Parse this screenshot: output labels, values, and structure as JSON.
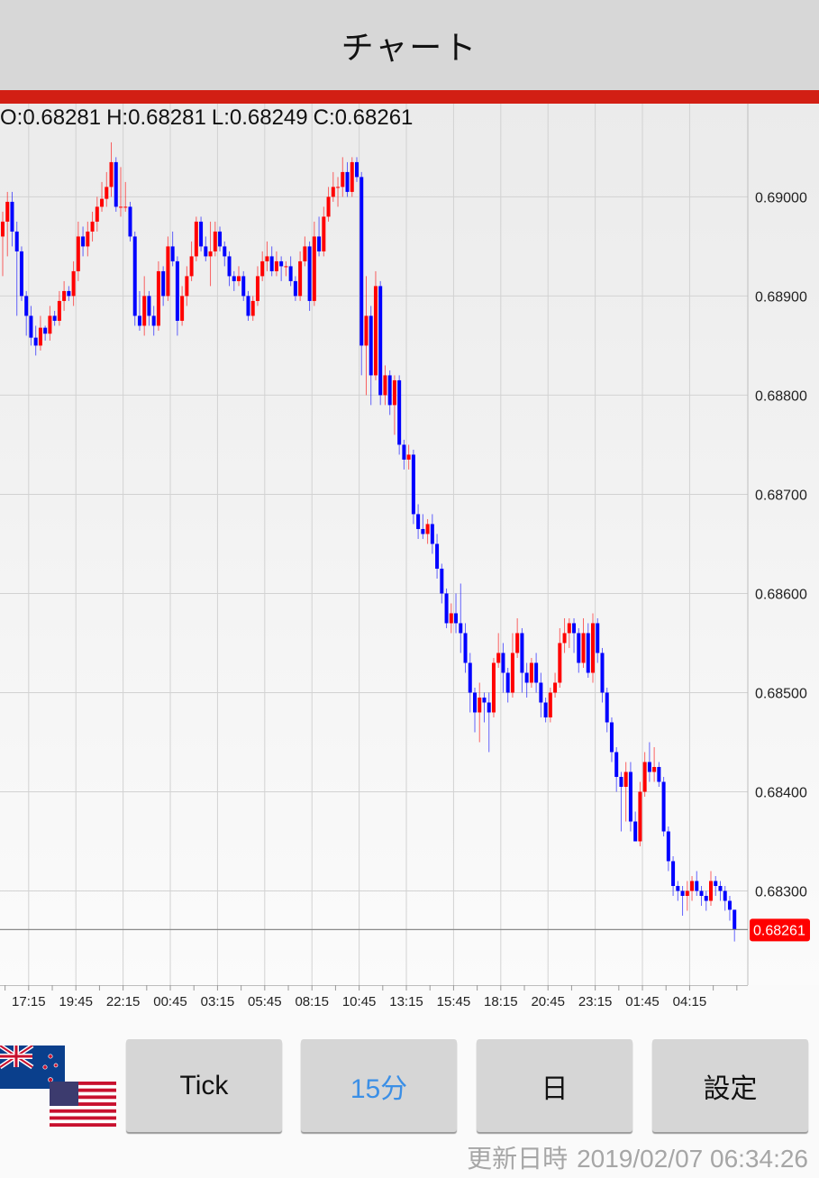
{
  "header": {
    "title": "チャート"
  },
  "ohlc": {
    "open": "O:0.68281",
    "high": "H:0.68281",
    "low": "L:0.68249",
    "close": "C:0.68261"
  },
  "colors": {
    "up": "#ff0000",
    "down": "#0000ff",
    "accent_bar": "#d21f14",
    "active_button": "#3b8fe6",
    "current_price_label": "#ff0000"
  },
  "currency_pair": {
    "base_flag": "new-zealand-flag",
    "quote_flag": "united-states-flag"
  },
  "buttons": [
    {
      "label": "Tick",
      "active": false
    },
    {
      "label": "15分",
      "active": true
    },
    {
      "label": "日",
      "active": false
    },
    {
      "label": "設定",
      "active": false
    }
  ],
  "updated": {
    "label": "更新日時",
    "value": "2019/02/07 06:34:26"
  },
  "chart_data": {
    "type": "candlestick",
    "interval": "15分",
    "ylim": [
      0.68205,
      0.69094
    ],
    "y_ticks": [
      "0.69000",
      "0.68900",
      "0.68800",
      "0.68700",
      "0.68600",
      "0.68500",
      "0.68400",
      "0.68300"
    ],
    "x_tick_labels": [
      "17:15",
      "19:45",
      "22:15",
      "00:45",
      "03:15",
      "05:45",
      "08:15",
      "10:45",
      "13:15",
      "15:45",
      "18:15",
      "20:45",
      "23:15",
      "01:45",
      "04:15"
    ],
    "current_price": "0.68261",
    "grid": true,
    "first_open": 0.6896,
    "close": [
      0.68975,
      0.68995,
      0.68965,
      0.68945,
      0.689,
      0.6888,
      0.68858,
      0.6885,
      0.68868,
      0.68862,
      0.6888,
      0.68875,
      0.68895,
      0.68905,
      0.689,
      0.68925,
      0.6896,
      0.6895,
      0.68965,
      0.68975,
      0.6899,
      0.68998,
      0.6901,
      0.69035,
      0.6899,
      0.6899,
      0.6899,
      0.6896,
      0.6888,
      0.6887,
      0.689,
      0.6888,
      0.6887,
      0.68925,
      0.689,
      0.6895,
      0.68935,
      0.68875,
      0.689,
      0.6892,
      0.6894,
      0.68975,
      0.6895,
      0.6894,
      0.68945,
      0.68965,
      0.6895,
      0.6894,
      0.6892,
      0.68915,
      0.6892,
      0.689,
      0.6888,
      0.68895,
      0.6892,
      0.68935,
      0.6894,
      0.68925,
      0.68935,
      0.6893,
      0.6893,
      0.68915,
      0.689,
      0.68935,
      0.6895,
      0.68895,
      0.6896,
      0.68945,
      0.6898,
      0.69,
      0.6901,
      0.6901,
      0.69025,
      0.69005,
      0.69035,
      0.6902,
      0.6885,
      0.6888,
      0.6882,
      0.6891,
      0.688,
      0.6882,
      0.6879,
      0.68815,
      0.6875,
      0.68735,
      0.6874,
      0.6868,
      0.68665,
      0.6866,
      0.6867,
      0.6865,
      0.68625,
      0.686,
      0.6857,
      0.6858,
      0.6857,
      0.6856,
      0.6853,
      0.685,
      0.6848,
      0.68495,
      0.6849,
      0.6848,
      0.6853,
      0.6854,
      0.6852,
      0.685,
      0.6854,
      0.6856,
      0.6852,
      0.6851,
      0.6853,
      0.6851,
      0.6849,
      0.68475,
      0.685,
      0.6851,
      0.6855,
      0.6856,
      0.6857,
      0.6856,
      0.6853,
      0.6856,
      0.6852,
      0.6857,
      0.6854,
      0.685,
      0.6847,
      0.6844,
      0.68415,
      0.68405,
      0.6842,
      0.6837,
      0.6835,
      0.684,
      0.6843,
      0.6842,
      0.68425,
      0.6841,
      0.6836,
      0.6833,
      0.68305,
      0.683,
      0.68295,
      0.683,
      0.6831,
      0.683,
      0.68295,
      0.6829,
      0.6831,
      0.68305,
      0.683,
      0.6829,
      0.68281,
      0.68261
    ],
    "high": [
      0.68985,
      0.69005,
      0.69005,
      0.68975,
      0.6895,
      0.68905,
      0.6889,
      0.6887,
      0.6888,
      0.6887,
      0.6889,
      0.68885,
      0.68905,
      0.68915,
      0.6891,
      0.68935,
      0.68975,
      0.6897,
      0.68975,
      0.68985,
      0.69,
      0.69015,
      0.69025,
      0.69055,
      0.6904,
      0.6903,
      0.69015,
      0.68995,
      0.68965,
      0.68905,
      0.6892,
      0.68905,
      0.6889,
      0.68935,
      0.6893,
      0.6896,
      0.68965,
      0.6894,
      0.6891,
      0.6893,
      0.68955,
      0.6898,
      0.6898,
      0.6896,
      0.68975,
      0.68975,
      0.6897,
      0.68955,
      0.68945,
      0.68925,
      0.6893,
      0.68925,
      0.68905,
      0.689,
      0.6893,
      0.68945,
      0.68955,
      0.6895,
      0.68945,
      0.6894,
      0.68935,
      0.6894,
      0.6892,
      0.68945,
      0.6896,
      0.68955,
      0.68975,
      0.6898,
      0.6899,
      0.6901,
      0.69025,
      0.6902,
      0.6904,
      0.69035,
      0.6904,
      0.6904,
      0.69025,
      0.6892,
      0.6889,
      0.68925,
      0.68915,
      0.6883,
      0.68825,
      0.6882,
      0.6882,
      0.68755,
      0.6875,
      0.68745,
      0.6869,
      0.6868,
      0.68675,
      0.6868,
      0.6866,
      0.6863,
      0.68605,
      0.6859,
      0.686,
      0.6861,
      0.6857,
      0.6854,
      0.68505,
      0.6851,
      0.685,
      0.685,
      0.68535,
      0.6856,
      0.6855,
      0.68525,
      0.6856,
      0.68575,
      0.68565,
      0.6853,
      0.68535,
      0.6854,
      0.6852,
      0.68495,
      0.68505,
      0.6852,
      0.68565,
      0.68575,
      0.68575,
      0.68575,
      0.68565,
      0.68575,
      0.6857,
      0.6858,
      0.68575,
      0.68545,
      0.68505,
      0.68475,
      0.68445,
      0.6842,
      0.6843,
      0.6843,
      0.6838,
      0.6841,
      0.6844,
      0.6845,
      0.68445,
      0.6843,
      0.68415,
      0.68365,
      0.68335,
      0.6831,
      0.68305,
      0.6831,
      0.68315,
      0.6832,
      0.68305,
      0.683,
      0.6832,
      0.68315,
      0.6831,
      0.68305,
      0.68295,
      0.68281
    ],
    "low": [
      0.6892,
      0.6894,
      0.6895,
      0.6888,
      0.68895,
      0.6886,
      0.6885,
      0.6884,
      0.68845,
      0.68855,
      0.68855,
      0.6887,
      0.6887,
      0.68885,
      0.68895,
      0.6889,
      0.68915,
      0.6894,
      0.6894,
      0.68955,
      0.68965,
      0.68985,
      0.6899,
      0.69,
      0.68985,
      0.6898,
      0.68985,
      0.68955,
      0.6887,
      0.68865,
      0.6886,
      0.6887,
      0.6886,
      0.68865,
      0.6889,
      0.68895,
      0.6893,
      0.6886,
      0.6887,
      0.6889,
      0.68915,
      0.68935,
      0.68945,
      0.68935,
      0.6891,
      0.6894,
      0.68945,
      0.6893,
      0.6891,
      0.68905,
      0.6891,
      0.68895,
      0.68875,
      0.68875,
      0.6889,
      0.68915,
      0.68925,
      0.6892,
      0.6892,
      0.68915,
      0.6892,
      0.6891,
      0.68895,
      0.68895,
      0.6893,
      0.68885,
      0.6889,
      0.6894,
      0.6894,
      0.68975,
      0.68995,
      0.6899,
      0.69,
      0.69,
      0.69,
      0.69015,
      0.6882,
      0.688,
      0.6879,
      0.68815,
      0.6879,
      0.6879,
      0.6878,
      0.6876,
      0.6874,
      0.68725,
      0.68725,
      0.6867,
      0.68655,
      0.68655,
      0.6865,
      0.6864,
      0.68615,
      0.6859,
      0.68565,
      0.6856,
      0.6856,
      0.6854,
      0.6852,
      0.6848,
      0.6846,
      0.6845,
      0.6847,
      0.6844,
      0.68475,
      0.68525,
      0.685,
      0.6849,
      0.68495,
      0.68535,
      0.685,
      0.68495,
      0.68505,
      0.685,
      0.68475,
      0.6847,
      0.6847,
      0.68495,
      0.68505,
      0.6854,
      0.68545,
      0.6854,
      0.6852,
      0.68525,
      0.68515,
      0.6851,
      0.6853,
      0.6849,
      0.6846,
      0.6843,
      0.684,
      0.6836,
      0.6837,
      0.6836,
      0.6835,
      0.68345,
      0.68395,
      0.6841,
      0.6841,
      0.68405,
      0.68355,
      0.6832,
      0.68295,
      0.6829,
      0.68275,
      0.6828,
      0.6829,
      0.68295,
      0.68285,
      0.6828,
      0.68285,
      0.68295,
      0.6829,
      0.6828,
      0.6827,
      0.68249
    ]
  }
}
